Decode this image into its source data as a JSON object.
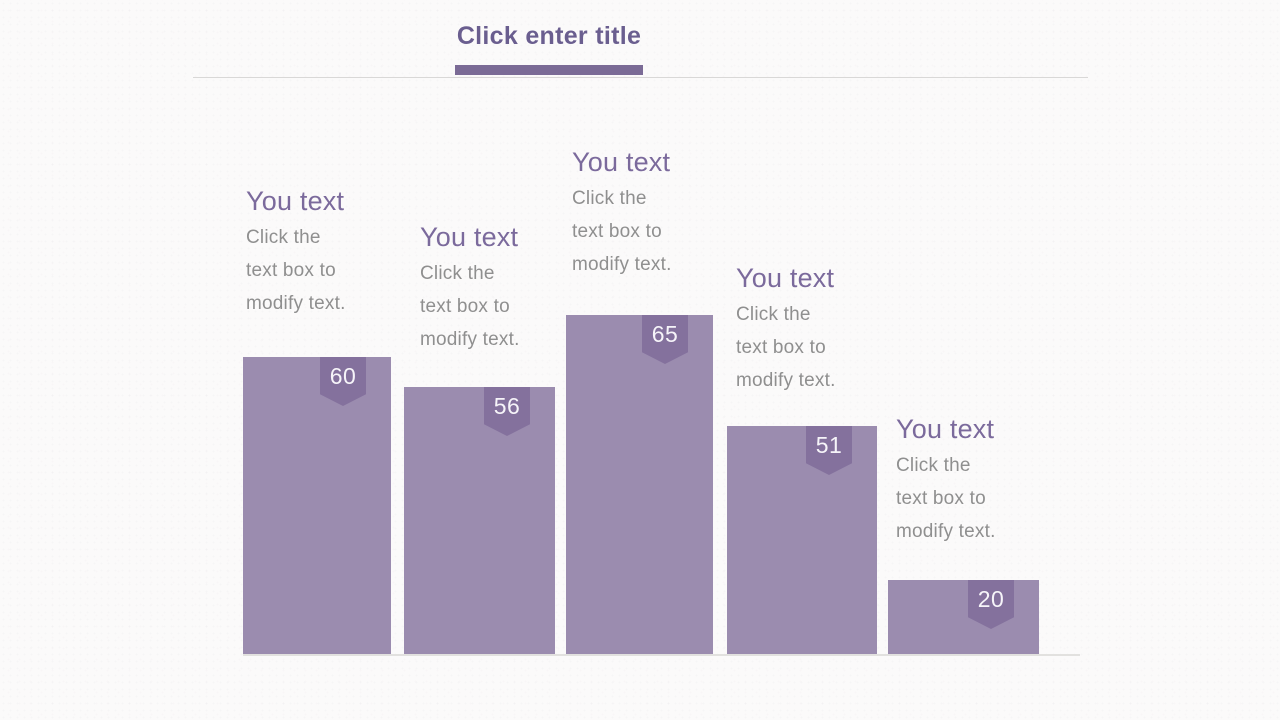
{
  "slide": {
    "title": "Click enter title"
  },
  "chart_data": {
    "type": "bar",
    "categories": [
      "You text",
      "You text",
      "You text",
      "You text",
      "You text"
    ],
    "values": [
      60,
      56,
      65,
      51,
      20
    ],
    "title": "Click enter title",
    "xlabel": "",
    "ylabel": "",
    "ylim": [
      0,
      70
    ],
    "grid": false,
    "legend": "none",
    "data_labels": [
      "60",
      "56",
      "65",
      "51",
      "20"
    ]
  },
  "columns": [
    {
      "heading": "You text",
      "lines": [
        "Click the",
        "text box to",
        "modify text."
      ],
      "value": "60"
    },
    {
      "heading": "You text",
      "lines": [
        "Click the",
        "text box to",
        "modify text."
      ],
      "value": "56"
    },
    {
      "heading": "You text",
      "lines": [
        "Click the",
        "text box to",
        "modify text."
      ],
      "value": "65"
    },
    {
      "heading": "You text",
      "lines": [
        "Click the",
        "text box to",
        "modify text."
      ],
      "value": "51"
    },
    {
      "heading": "You text",
      "lines": [
        "Click the",
        "text box to",
        "modify text."
      ],
      "value": "20"
    }
  ],
  "colors": {
    "accent": "#7b6b96",
    "title_text": "#6a5e8f",
    "heading_text": "#7b6a9c",
    "body_text": "#8f8f8f",
    "bar_fill": "#9b8caf",
    "badge_fill": "#84719d",
    "badge_text": "#f6f4f9",
    "divider": "#d9d8d7",
    "background": "#fbfafa"
  }
}
